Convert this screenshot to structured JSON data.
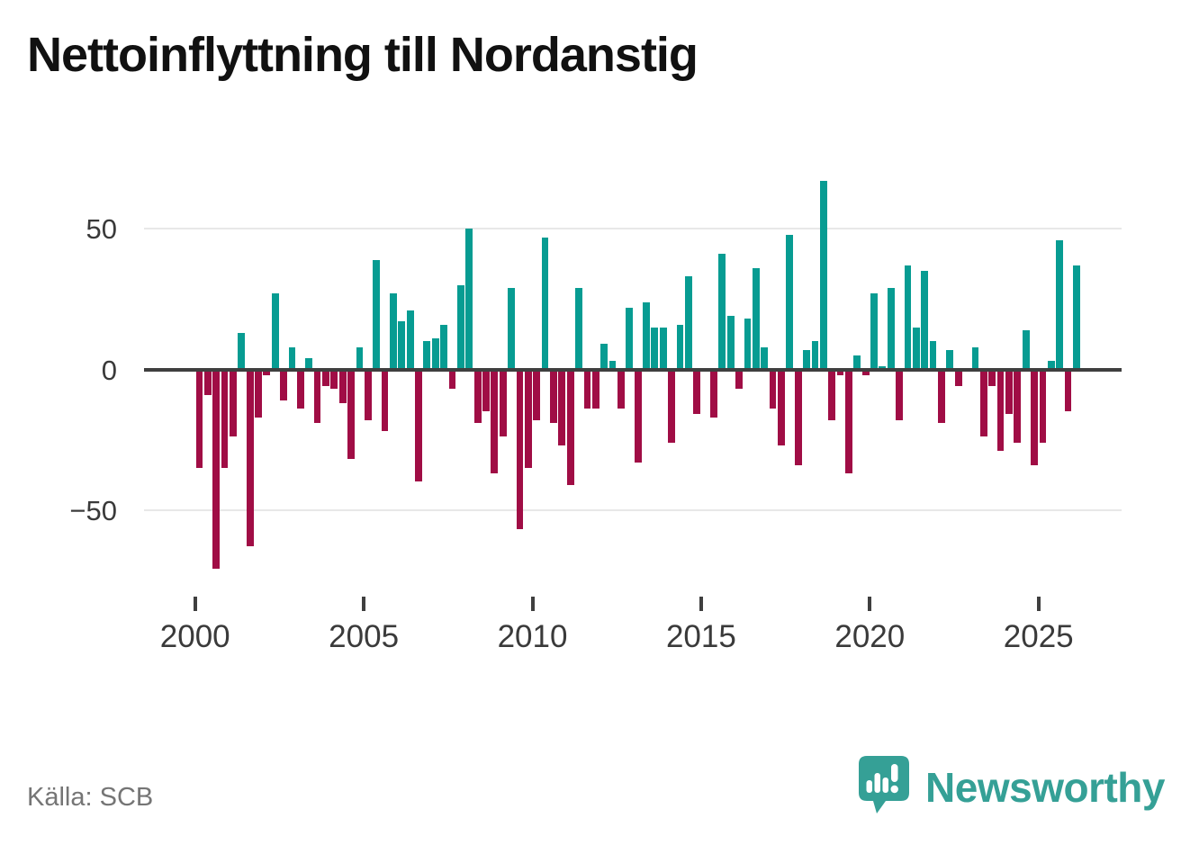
{
  "title": "Nettoinflyttning till Nordanstig",
  "source": "Källa: SCB",
  "brand": {
    "name": "Newsworthy"
  },
  "colors": {
    "positive": "#079c92",
    "negative": "#a00d45",
    "grid": "#e8e8e8",
    "zero_line": "#3f3f3f",
    "axis_text": "#3a3a3a",
    "source_text": "#757575",
    "brand_teal": "#35a096",
    "title_text": "#111111",
    "background": "#ffffff"
  },
  "y_axis": {
    "ticks": [
      {
        "label": "50",
        "value": 50
      },
      {
        "label": "0",
        "value": 0
      },
      {
        "label": "−50",
        "value": -50
      }
    ]
  },
  "x_axis": {
    "ticks": [
      {
        "label": "2000",
        "year": 2000
      },
      {
        "label": "2005",
        "year": 2005
      },
      {
        "label": "2010",
        "year": 2010
      },
      {
        "label": "2015",
        "year": 2015
      },
      {
        "label": "2020",
        "year": 2020
      },
      {
        "label": "2025",
        "year": 2025
      }
    ]
  },
  "chart_data": {
    "type": "bar",
    "title": "Nettoinflyttning till Nordanstig",
    "xlabel": "",
    "ylabel": "",
    "x_unit": "quarter",
    "x_start": "2000Q1",
    "x_end": "2026Q1",
    "ylim": [
      -78,
      72
    ],
    "grid": "horizontal",
    "legend": "none",
    "series_note": "quarterly net migration, teal = positive, dark red = negative",
    "values": [
      -35,
      -9,
      -71,
      -35,
      -24,
      13,
      -63,
      -17,
      -2,
      27,
      -11,
      8,
      -14,
      4,
      -19,
      -6,
      -7,
      -12,
      -32,
      8,
      -18,
      39,
      -22,
      27,
      17,
      21,
      -40,
      10,
      11,
      16,
      -7,
      30,
      50,
      -19,
      -15,
      -37,
      -24,
      29,
      -57,
      -35,
      -18,
      47,
      -19,
      -27,
      -41,
      29,
      -14,
      -14,
      9,
      3,
      -14,
      22,
      -33,
      24,
      15,
      15,
      -26,
      16,
      33,
      -16,
      0,
      -17,
      41,
      19,
      -7,
      18,
      36,
      8,
      -14,
      -27,
      48,
      -34,
      7,
      10,
      67,
      -18,
      -2,
      -37,
      5,
      -2,
      27,
      1,
      29,
      -18,
      37,
      15,
      35,
      10,
      -19,
      7,
      -6,
      0,
      8,
      -24,
      -6,
      -29,
      -16,
      -26,
      14,
      -34,
      -26,
      3,
      46,
      -15,
      37
    ]
  }
}
